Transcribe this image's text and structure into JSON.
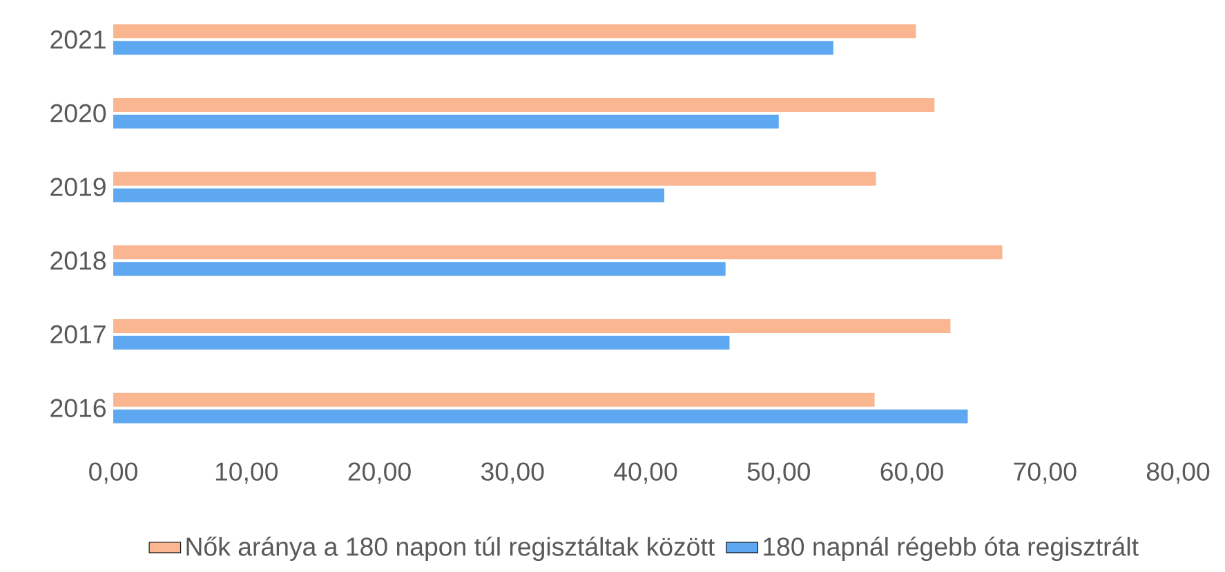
{
  "chart_data": {
    "type": "bar",
    "orientation": "horizontal",
    "categories": [
      "2021",
      "2020",
      "2019",
      "2018",
      "2017",
      "2016"
    ],
    "series": [
      {
        "name": "Nők aránya a 180 napon túl regisztáltak között",
        "color": "#f9b691",
        "values": [
          60.3,
          61.7,
          57.3,
          66.8,
          62.9,
          57.2
        ]
      },
      {
        "name": "180 napnál régebb óta regisztrált",
        "color": "#5ea8f2",
        "values": [
          54.1,
          50.0,
          41.4,
          46.0,
          46.3,
          64.2
        ]
      }
    ],
    "xlim": [
      0,
      80
    ],
    "xticks": [
      {
        "value": 0,
        "label": "0,00"
      },
      {
        "value": 10,
        "label": "10,00"
      },
      {
        "value": 20,
        "label": "20,00"
      },
      {
        "value": 30,
        "label": "30,00"
      },
      {
        "value": 40,
        "label": "40,00"
      },
      {
        "value": 50,
        "label": "50,00"
      },
      {
        "value": 60,
        "label": "60,00"
      },
      {
        "value": 70,
        "label": "70,00"
      },
      {
        "value": 80,
        "label": "80,00"
      }
    ],
    "legend": "bottom"
  }
}
